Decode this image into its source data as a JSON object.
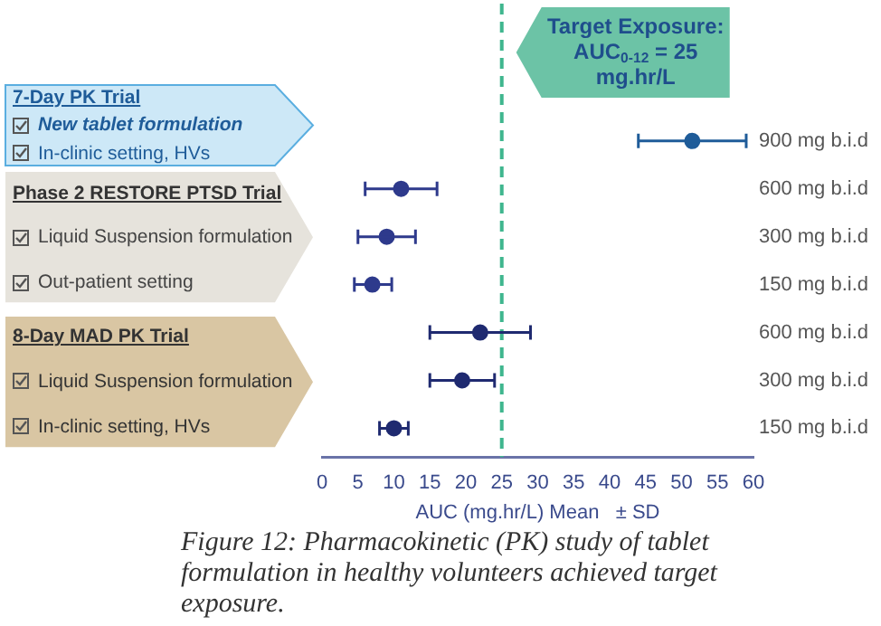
{
  "chart_data": {
    "type": "scatter",
    "orientation": "horizontal",
    "xlabel": "AUC (mg.hr/L) Mean   ± SD",
    "categories": [
      "900 mg b.i.d",
      "600 mg b.i.d",
      "300 mg b.i.d",
      "150 mg b.i.d",
      "600 mg b.i.d",
      "300 mg b.i.d",
      "150 mg b.i.d"
    ],
    "values": [
      51.5,
      11,
      9,
      7,
      22,
      19.5,
      10
    ],
    "errors": [
      [
        44,
        59
      ],
      [
        6,
        16
      ],
      [
        5,
        13
      ],
      [
        4.5,
        9.7
      ],
      [
        15,
        29
      ],
      [
        15,
        24
      ],
      [
        8,
        12
      ]
    ],
    "colors": [
      "#1f5c99",
      "#2e3a8c",
      "#2e3a8c",
      "#2e3a8c",
      "#1f2a70",
      "#1f2a70",
      "#1f2a70"
    ],
    "xlim": [
      0,
      60
    ],
    "xticks": [
      0,
      5,
      10,
      15,
      20,
      25,
      30,
      35,
      40,
      45,
      50,
      55,
      60
    ],
    "ref_lines": [
      {
        "axis": "x",
        "value": 25,
        "label": "Target Exposure:\nAUC$_{0-12}$ = 25\nmg.hr/L",
        "color": "#3fb68e",
        "line_style": "dashed"
      }
    ],
    "marker": "circle",
    "grid": false,
    "legend": false,
    "annotations": [
      "7-Day PK Trial",
      "New tablet formulation",
      "In-clinic setting, HVs",
      "Phase 2 RESTORE PTSD Trial",
      "Liquid Suspension formulation",
      "Out-patient setting",
      "8-Day MAD PK Trial",
      "Liquid Suspension formulation",
      "In-clinic setting, HVs",
      "Figure 12: Pharmacokinetic (PK) study of tablet formulation in healthy volunteers achieved target exposure."
    ]
  }
}
